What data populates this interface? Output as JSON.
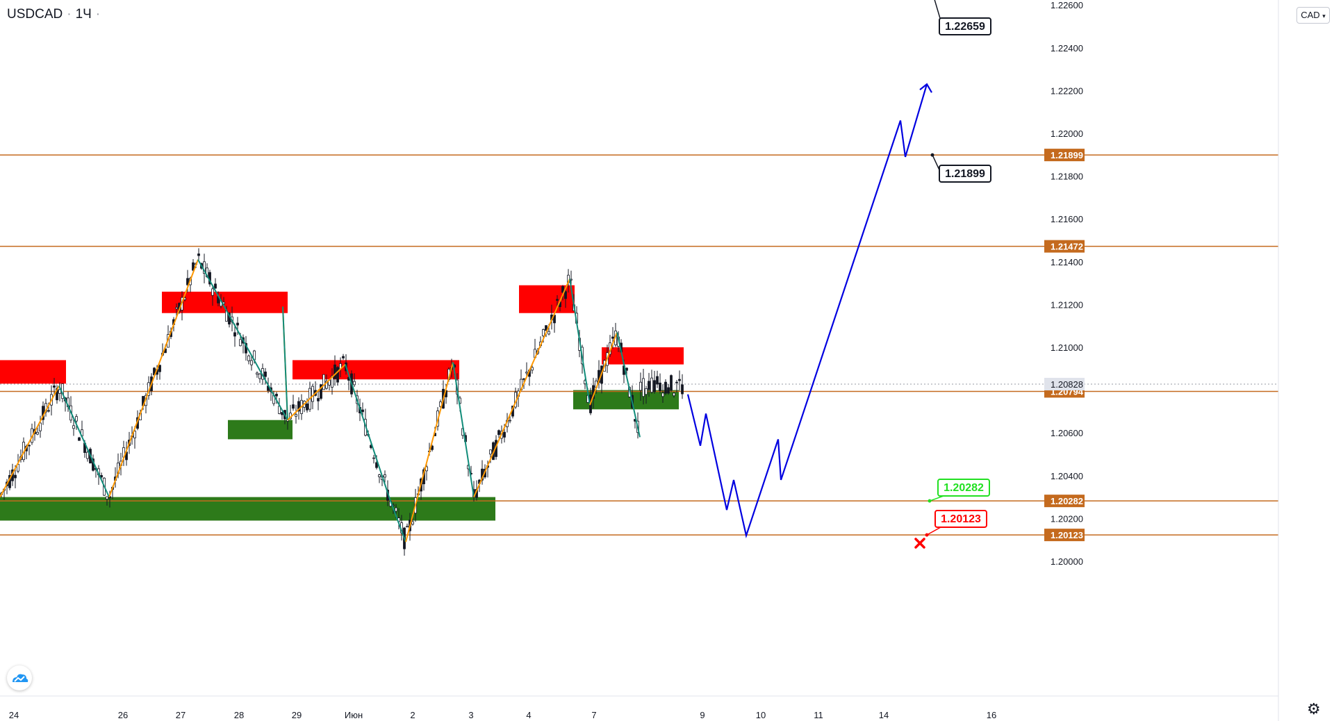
{
  "header": {
    "symbol": "USDCAD",
    "interval": "1Ч",
    "dot": "·"
  },
  "currency_button": {
    "label": "CAD",
    "chevron_icon": "chevron-down-icon"
  },
  "settings_icon": "gear-icon",
  "logo_icon": "tradingview-cloud-icon",
  "colors": {
    "level_line": "#c46a1e",
    "level_tag_bg": "#c46a1e",
    "current_tag_bg": "#e0e3eb",
    "supply_zone": "#ff0000",
    "demand_zone": "#2d7a1a",
    "zigzag_up": "#ff9800",
    "zigzag_down": "#118c7a",
    "forecast": "#0000e0",
    "candle": "#131722",
    "target_callout_border": "#131722",
    "take_profit": "#21e021",
    "stop_loss": "#ff0000"
  },
  "chart_data": {
    "type": "candlestick",
    "symbol": "USDCAD",
    "timeframe": "1Ч",
    "y_axis": {
      "range": [
        1.1998,
        1.2285
      ],
      "ticks": [
        "1.20000",
        "1.20200",
        "1.20400",
        "1.20600",
        "1.20800",
        "1.21000",
        "1.21200",
        "1.21400",
        "1.21600",
        "1.21800",
        "1.22000",
        "1.22200",
        "1.22400",
        "1.22600"
      ]
    },
    "x_axis": {
      "labels": [
        "24",
        "26",
        "27",
        "28",
        "29",
        "Июн",
        "2",
        "3",
        "4",
        "7",
        "9",
        "10",
        "11",
        "14",
        "16"
      ]
    },
    "price_levels": [
      {
        "value": "1.22659"
      },
      {
        "value": "1.21899"
      },
      {
        "value": "1.21472"
      },
      {
        "value": "1.20794"
      },
      {
        "value": "1.20282"
      },
      {
        "value": "1.20123"
      }
    ],
    "current_price": "1.20828",
    "callouts": [
      {
        "label": "1.22659",
        "role": "target",
        "anchor_price": 1.22659
      },
      {
        "label": "1.21899",
        "role": "target",
        "anchor_price": 1.21899
      },
      {
        "label": "1.20282",
        "role": "take-profit",
        "anchor_price": 1.20282
      },
      {
        "label": "1.20123",
        "role": "stop-loss",
        "anchor_price": 1.20123
      }
    ],
    "zones": [
      {
        "type": "supply",
        "from_price": 1.2083,
        "to_price": 1.2094
      },
      {
        "type": "supply",
        "from_price": 1.2116,
        "to_price": 1.2126
      },
      {
        "type": "supply",
        "from_price": 1.2085,
        "to_price": 1.2094
      },
      {
        "type": "supply",
        "from_price": 1.2116,
        "to_price": 1.2129
      },
      {
        "type": "supply",
        "from_price": 1.2092,
        "to_price": 1.21
      },
      {
        "type": "demand",
        "from_price": 1.2019,
        "to_price": 1.203
      },
      {
        "type": "demand",
        "from_price": 1.2057,
        "to_price": 1.2066
      },
      {
        "type": "demand",
        "from_price": 1.2071,
        "to_price": 1.208
      }
    ],
    "zigzag_prices": [
      1.203,
      1.2082,
      1.203,
      1.2141,
      1.2066,
      1.2119,
      1.2066,
      1.2092,
      1.203,
      1.2009,
      1.2093,
      1.203,
      1.2132,
      1.2073,
      1.2107,
      1.2058
    ],
    "forecast_prices": [
      1.2078,
      1.2054,
      1.2069,
      1.2024,
      1.2038,
      1.2012,
      1.2057,
      1.2038,
      1.2206,
      1.2189,
      1.2223
    ]
  }
}
